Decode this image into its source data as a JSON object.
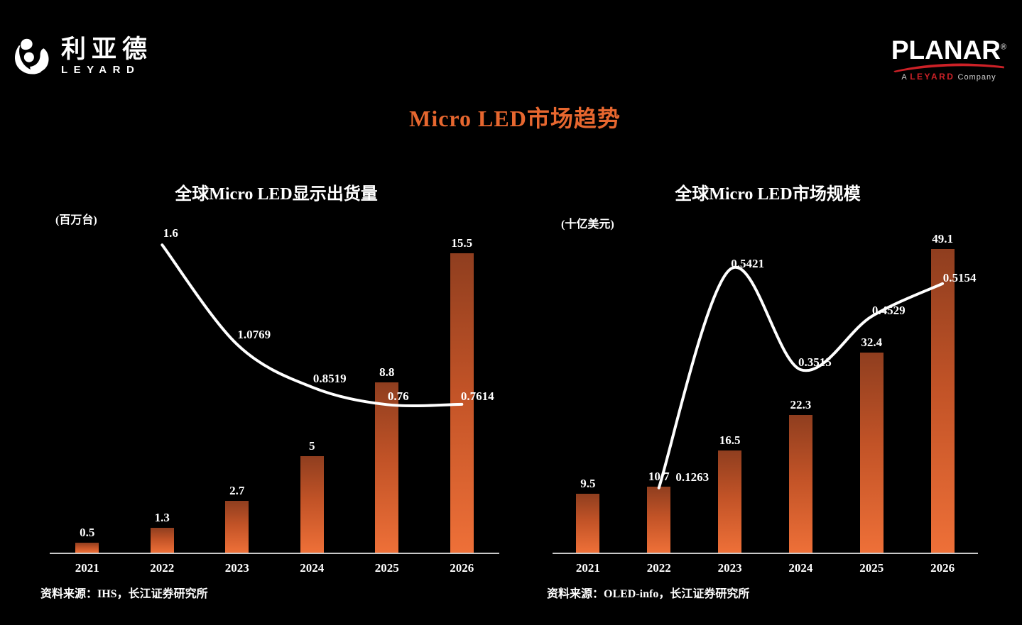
{
  "header": {
    "leyard": {
      "cn": "利亚德",
      "en": "LEYARD"
    },
    "planar": {
      "name": "PLANAR",
      "reg": "®",
      "sub_a": "A",
      "sub_leyard": "LEYARD",
      "sub_company": "Company"
    }
  },
  "title": "Micro LED市场趋势",
  "chart_data": [
    {
      "type": "bar",
      "title": "全球Micro LED显示出货量",
      "unit": "(百万台)",
      "categories": [
        "2021",
        "2022",
        "2023",
        "2024",
        "2025",
        "2026"
      ],
      "series": [
        {
          "type": "bar",
          "values": [
            0.5,
            1.3,
            2.7,
            5,
            8.8,
            15.5
          ]
        },
        {
          "type": "line",
          "categories": [
            "2022",
            "2023",
            "2024",
            "2025",
            "2026"
          ],
          "values": [
            1.6,
            1.0769,
            0.8519,
            0.76,
            0.7614
          ]
        }
      ],
      "xlabel": "",
      "ylabel": "百万台",
      "grid": false,
      "legend": "none",
      "source": "资料来源：IHS，长江证券研究所"
    },
    {
      "type": "bar",
      "title": "全球Micro LED市场规模",
      "unit": "(十亿美元)",
      "categories": [
        "2021",
        "2022",
        "2023",
        "2024",
        "2025",
        "2026"
      ],
      "series": [
        {
          "type": "bar",
          "values": [
            9.5,
            10.7,
            16.5,
            22.3,
            32.4,
            49.1
          ]
        },
        {
          "type": "line",
          "categories": [
            "2022",
            "2023",
            "2024",
            "2025",
            "2026"
          ],
          "values": [
            0.1263,
            0.5421,
            0.3515,
            0.4529,
            0.5154
          ]
        }
      ],
      "xlabel": "",
      "ylabel": "十亿美元",
      "grid": false,
      "legend": "none",
      "source": "资料来源：OLED-info，长江证券研究所"
    }
  ],
  "colors": {
    "background": "#000000",
    "title_orange": "#e7672f",
    "bar_gradient_top": "#8f3e1f",
    "bar_gradient_bottom": "#ee7038",
    "line": "#ffffff",
    "axis": "#c9c9c9",
    "planar_red": "#cd2127"
  }
}
